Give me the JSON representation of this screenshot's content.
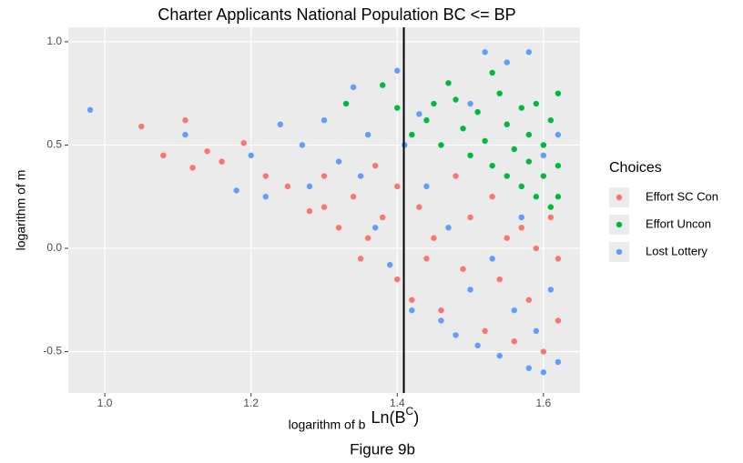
{
  "chart_data": {
    "type": "scatter",
    "title": "Charter Applicants National Population BC <= BP",
    "x_label": "logarithm of b",
    "y_label": "logarithm of m",
    "caption": "Figure 9b",
    "legend_title": "Choices",
    "legend": "right",
    "grid": true,
    "xlim": [
      0.95,
      1.65
    ],
    "ylim": [
      -0.7,
      1.07
    ],
    "xticks": [
      {
        "value": 1.0,
        "label": "1.0"
      },
      1.2,
      1.4,
      1.6
    ],
    "yticks": [
      -0.5,
      {
        "value": 0,
        "label": "0.0"
      },
      0.5,
      {
        "value": 1,
        "label": "1.0"
      }
    ],
    "vline": {
      "x": 1.409,
      "label": "Ln(B",
      "label_sup": "C",
      "label_end": ")"
    },
    "series": [
      {
        "name": "Effort SC Con",
        "color": "#F8766D",
        "x": [
          1.05,
          1.08,
          1.11,
          1.12,
          1.14,
          1.16,
          1.19,
          1.22,
          1.25,
          1.28,
          1.3,
          1.32,
          1.34,
          1.35,
          1.37,
          1.38,
          1.4,
          1.4,
          1.42,
          1.43,
          1.45,
          1.46,
          1.48,
          1.49,
          1.5,
          1.52,
          1.53,
          1.54,
          1.55,
          1.56,
          1.57,
          1.58,
          1.59,
          1.6,
          1.61,
          1.62,
          1.62,
          1.44,
          1.36,
          1.3
        ],
        "y": [
          0.59,
          0.45,
          0.62,
          0.39,
          0.47,
          0.42,
          0.51,
          0.35,
          0.3,
          0.18,
          0.35,
          0.1,
          0.25,
          -0.05,
          0.4,
          0.15,
          -0.15,
          0.3,
          -0.25,
          0.2,
          0.05,
          -0.3,
          0.35,
          -0.1,
          0.15,
          -0.4,
          0.25,
          -0.15,
          0.05,
          -0.45,
          0.1,
          -0.25,
          0.0,
          -0.5,
          0.15,
          -0.35,
          -0.05,
          -0.05,
          0.05,
          0.2
        ]
      },
      {
        "name": "Effort Uncon",
        "color": "#00BA38",
        "x": [
          1.33,
          1.38,
          1.4,
          1.42,
          1.44,
          1.46,
          1.48,
          1.49,
          1.5,
          1.51,
          1.52,
          1.53,
          1.54,
          1.55,
          1.55,
          1.56,
          1.57,
          1.57,
          1.58,
          1.58,
          1.59,
          1.59,
          1.6,
          1.6,
          1.61,
          1.61,
          1.62,
          1.62,
          1.62,
          1.47,
          1.53,
          1.45
        ],
        "y": [
          0.7,
          0.79,
          0.68,
          0.55,
          0.62,
          0.5,
          0.72,
          0.58,
          0.45,
          0.66,
          0.52,
          0.4,
          0.75,
          0.6,
          0.35,
          0.48,
          0.68,
          0.3,
          0.55,
          0.42,
          0.25,
          0.7,
          0.5,
          0.35,
          0.2,
          0.62,
          0.75,
          0.4,
          0.25,
          0.8,
          0.85,
          0.7
        ]
      },
      {
        "name": "Lost Lottery",
        "color": "#619CFF",
        "x": [
          0.98,
          1.11,
          1.18,
          1.2,
          1.24,
          1.27,
          1.3,
          1.32,
          1.34,
          1.36,
          1.37,
          1.39,
          1.4,
          1.41,
          1.42,
          1.43,
          1.44,
          1.46,
          1.47,
          1.48,
          1.5,
          1.5,
          1.51,
          1.52,
          1.53,
          1.54,
          1.55,
          1.56,
          1.57,
          1.58,
          1.58,
          1.59,
          1.6,
          1.6,
          1.61,
          1.62,
          1.62,
          1.28,
          1.22,
          1.35
        ],
        "y": [
          0.67,
          0.55,
          0.28,
          0.45,
          0.6,
          0.5,
          0.62,
          0.42,
          0.78,
          0.55,
          0.1,
          -0.08,
          0.86,
          0.5,
          -0.3,
          0.65,
          0.3,
          -0.35,
          0.1,
          -0.42,
          -0.2,
          0.7,
          -0.47,
          0.95,
          -0.05,
          -0.52,
          0.9,
          -0.3,
          0.15,
          -0.58,
          0.95,
          -0.4,
          -0.6,
          0.45,
          -0.2,
          -0.55,
          0.55,
          0.3,
          0.25,
          0.35
        ]
      }
    ]
  }
}
